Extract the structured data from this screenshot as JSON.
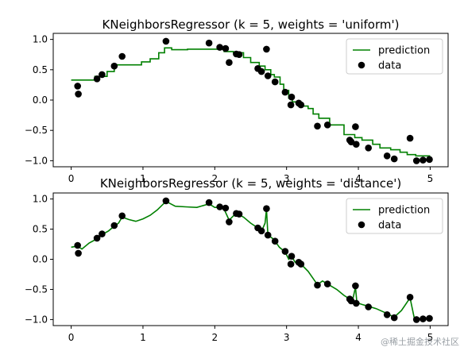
{
  "chart_data": [
    {
      "type": "scatter+line",
      "title": "KNeighborsRegressor (k = 5, weights = 'uniform')",
      "xlim": [
        -0.25,
        5.25
      ],
      "ylim": [
        -1.1,
        1.1
      ],
      "xticks": [
        "0",
        "1",
        "2",
        "3",
        "4",
        "5"
      ],
      "yticks": [
        "1.0",
        "0.5",
        "0.0",
        "−0.5",
        "−1.0"
      ],
      "legend": {
        "placement": "top-right",
        "entries": [
          "prediction",
          "data"
        ]
      },
      "colors": {
        "prediction": "#008000",
        "data": "#000000"
      },
      "data_points": [
        [
          0.09,
          0.23
        ],
        [
          0.1,
          0.1
        ],
        [
          0.36,
          0.35
        ],
        [
          0.43,
          0.42
        ],
        [
          0.6,
          0.56
        ],
        [
          0.71,
          0.72
        ],
        [
          1.32,
          0.97
        ],
        [
          1.92,
          0.94
        ],
        [
          2.07,
          0.87
        ],
        [
          2.15,
          0.85
        ],
        [
          2.2,
          0.62
        ],
        [
          2.3,
          0.76
        ],
        [
          2.34,
          0.75
        ],
        [
          2.6,
          0.52
        ],
        [
          2.65,
          0.47
        ],
        [
          2.72,
          0.84
        ],
        [
          2.74,
          0.4
        ],
        [
          2.84,
          0.3
        ],
        [
          2.98,
          0.13
        ],
        [
          3.06,
          -0.08
        ],
        [
          3.07,
          0.05
        ],
        [
          3.17,
          -0.05
        ],
        [
          3.2,
          -0.08
        ],
        [
          3.43,
          -0.43
        ],
        [
          3.57,
          -0.41
        ],
        [
          3.88,
          -0.66
        ],
        [
          3.9,
          -0.69
        ],
        [
          3.96,
          -0.44
        ],
        [
          3.97,
          -0.73
        ],
        [
          4.14,
          -0.79
        ],
        [
          4.4,
          -0.92
        ],
        [
          4.5,
          -0.97
        ],
        [
          4.72,
          -0.63
        ],
        [
          4.81,
          -1.0
        ],
        [
          4.9,
          -0.99
        ],
        [
          4.99,
          -0.98
        ]
      ],
      "prediction": [
        [
          0.0,
          0.33
        ],
        [
          0.33,
          0.33
        ],
        [
          0.33,
          0.39
        ],
        [
          0.5,
          0.39
        ],
        [
          0.5,
          0.47
        ],
        [
          0.6,
          0.47
        ],
        [
          0.6,
          0.58
        ],
        [
          0.98,
          0.58
        ],
        [
          0.98,
          0.63
        ],
        [
          1.1,
          0.63
        ],
        [
          1.1,
          0.68
        ],
        [
          1.22,
          0.68
        ],
        [
          1.22,
          0.78
        ],
        [
          1.3,
          0.78
        ],
        [
          1.3,
          0.86
        ],
        [
          1.4,
          0.86
        ],
        [
          1.4,
          0.83
        ],
        [
          1.62,
          0.83
        ],
        [
          1.62,
          0.84
        ],
        [
          2.13,
          0.84
        ],
        [
          2.13,
          0.8
        ],
        [
          2.26,
          0.8
        ],
        [
          2.26,
          0.78
        ],
        [
          2.4,
          0.78
        ],
        [
          2.4,
          0.7
        ],
        [
          2.5,
          0.7
        ],
        [
          2.5,
          0.62
        ],
        [
          2.62,
          0.62
        ],
        [
          2.62,
          0.56
        ],
        [
          2.7,
          0.56
        ],
        [
          2.7,
          0.5
        ],
        [
          2.78,
          0.5
        ],
        [
          2.78,
          0.42
        ],
        [
          2.83,
          0.42
        ],
        [
          2.83,
          0.38
        ],
        [
          2.91,
          0.38
        ],
        [
          2.91,
          0.26
        ],
        [
          2.96,
          0.26
        ],
        [
          2.96,
          0.16
        ],
        [
          3.03,
          0.16
        ],
        [
          3.03,
          0.03
        ],
        [
          3.08,
          0.03
        ],
        [
          3.08,
          -0.03
        ],
        [
          3.18,
          -0.03
        ],
        [
          3.18,
          -0.1
        ],
        [
          3.3,
          -0.1
        ],
        [
          3.3,
          -0.14
        ],
        [
          3.37,
          -0.14
        ],
        [
          3.37,
          -0.23
        ],
        [
          3.45,
          -0.23
        ],
        [
          3.45,
          -0.3
        ],
        [
          3.6,
          -0.3
        ],
        [
          3.6,
          -0.41
        ],
        [
          3.8,
          -0.41
        ],
        [
          3.8,
          -0.57
        ],
        [
          3.95,
          -0.57
        ],
        [
          3.95,
          -0.62
        ],
        [
          4.05,
          -0.62
        ],
        [
          4.05,
          -0.66
        ],
        [
          4.2,
          -0.66
        ],
        [
          4.2,
          -0.73
        ],
        [
          4.3,
          -0.73
        ],
        [
          4.3,
          -0.79
        ],
        [
          4.45,
          -0.79
        ],
        [
          4.45,
          -0.82
        ],
        [
          4.58,
          -0.82
        ],
        [
          4.58,
          -0.86
        ],
        [
          4.68,
          -0.86
        ],
        [
          4.68,
          -0.9
        ],
        [
          4.8,
          -0.9
        ],
        [
          4.8,
          -0.92
        ],
        [
          5.0,
          -0.92
        ]
      ]
    },
    {
      "type": "scatter+line",
      "title": "KNeighborsRegressor (k = 5, weights = 'distance')",
      "xlim": [
        -0.25,
        5.25
      ],
      "ylim": [
        -1.1,
        1.1
      ],
      "xticks": [
        "0",
        "1",
        "2",
        "3",
        "4",
        "5"
      ],
      "yticks": [
        "1.0",
        "0.5",
        "0.0",
        "−0.5",
        "−1.0"
      ],
      "legend": {
        "placement": "top-right",
        "entries": [
          "prediction",
          "data"
        ]
      },
      "colors": {
        "prediction": "#008000",
        "data": "#000000"
      },
      "data_points": [
        [
          0.09,
          0.23
        ],
        [
          0.1,
          0.1
        ],
        [
          0.36,
          0.35
        ],
        [
          0.43,
          0.42
        ],
        [
          0.6,
          0.56
        ],
        [
          0.71,
          0.72
        ],
        [
          1.32,
          0.97
        ],
        [
          1.92,
          0.94
        ],
        [
          2.07,
          0.87
        ],
        [
          2.15,
          0.85
        ],
        [
          2.2,
          0.62
        ],
        [
          2.3,
          0.76
        ],
        [
          2.34,
          0.75
        ],
        [
          2.6,
          0.52
        ],
        [
          2.65,
          0.47
        ],
        [
          2.72,
          0.84
        ],
        [
          2.74,
          0.4
        ],
        [
          2.84,
          0.3
        ],
        [
          2.98,
          0.13
        ],
        [
          3.06,
          -0.08
        ],
        [
          3.07,
          0.05
        ],
        [
          3.17,
          -0.05
        ],
        [
          3.2,
          -0.08
        ],
        [
          3.43,
          -0.43
        ],
        [
          3.57,
          -0.41
        ],
        [
          3.88,
          -0.66
        ],
        [
          3.9,
          -0.69
        ],
        [
          3.96,
          -0.44
        ],
        [
          3.97,
          -0.73
        ],
        [
          4.14,
          -0.79
        ],
        [
          4.4,
          -0.92
        ],
        [
          4.5,
          -0.97
        ],
        [
          4.72,
          -0.63
        ],
        [
          4.81,
          -1.0
        ],
        [
          4.9,
          -0.99
        ],
        [
          4.99,
          -0.98
        ]
      ],
      "prediction": [
        [
          0.0,
          0.2
        ],
        [
          0.09,
          0.22
        ],
        [
          0.15,
          0.17
        ],
        [
          0.25,
          0.27
        ],
        [
          0.36,
          0.34
        ],
        [
          0.43,
          0.41
        ],
        [
          0.52,
          0.47
        ],
        [
          0.6,
          0.55
        ],
        [
          0.66,
          0.6
        ],
        [
          0.71,
          0.7
        ],
        [
          0.8,
          0.66
        ],
        [
          0.9,
          0.63
        ],
        [
          1.0,
          0.67
        ],
        [
          1.1,
          0.73
        ],
        [
          1.2,
          0.82
        ],
        [
          1.32,
          0.96
        ],
        [
          1.45,
          0.88
        ],
        [
          1.6,
          0.87
        ],
        [
          1.75,
          0.86
        ],
        [
          1.92,
          0.92
        ],
        [
          2.0,
          0.86
        ],
        [
          2.07,
          0.86
        ],
        [
          2.13,
          0.83
        ],
        [
          2.2,
          0.65
        ],
        [
          2.26,
          0.72
        ],
        [
          2.32,
          0.75
        ],
        [
          2.4,
          0.7
        ],
        [
          2.5,
          0.6
        ],
        [
          2.6,
          0.52
        ],
        [
          2.65,
          0.46
        ],
        [
          2.7,
          0.6
        ],
        [
          2.72,
          0.83
        ],
        [
          2.74,
          0.4
        ],
        [
          2.8,
          0.35
        ],
        [
          2.84,
          0.3
        ],
        [
          2.9,
          0.2
        ],
        [
          2.98,
          0.12
        ],
        [
          3.03,
          0.0
        ],
        [
          3.07,
          0.05
        ],
        [
          3.12,
          -0.05
        ],
        [
          3.2,
          -0.08
        ],
        [
          3.3,
          -0.2
        ],
        [
          3.43,
          -0.42
        ],
        [
          3.5,
          -0.36
        ],
        [
          3.57,
          -0.41
        ],
        [
          3.7,
          -0.5
        ],
        [
          3.8,
          -0.6
        ],
        [
          3.88,
          -0.66
        ],
        [
          3.92,
          -0.68
        ],
        [
          3.96,
          -0.46
        ],
        [
          3.98,
          -0.72
        ],
        [
          4.05,
          -0.75
        ],
        [
          4.14,
          -0.78
        ],
        [
          4.25,
          -0.82
        ],
        [
          4.4,
          -0.9
        ],
        [
          4.5,
          -0.96
        ],
        [
          4.6,
          -0.85
        ],
        [
          4.72,
          -0.64
        ],
        [
          4.78,
          -0.98
        ],
        [
          4.85,
          -1.0
        ],
        [
          4.9,
          -0.98
        ],
        [
          5.0,
          -0.98
        ]
      ]
    }
  ],
  "watermark": "@稀土掘金技术社区"
}
